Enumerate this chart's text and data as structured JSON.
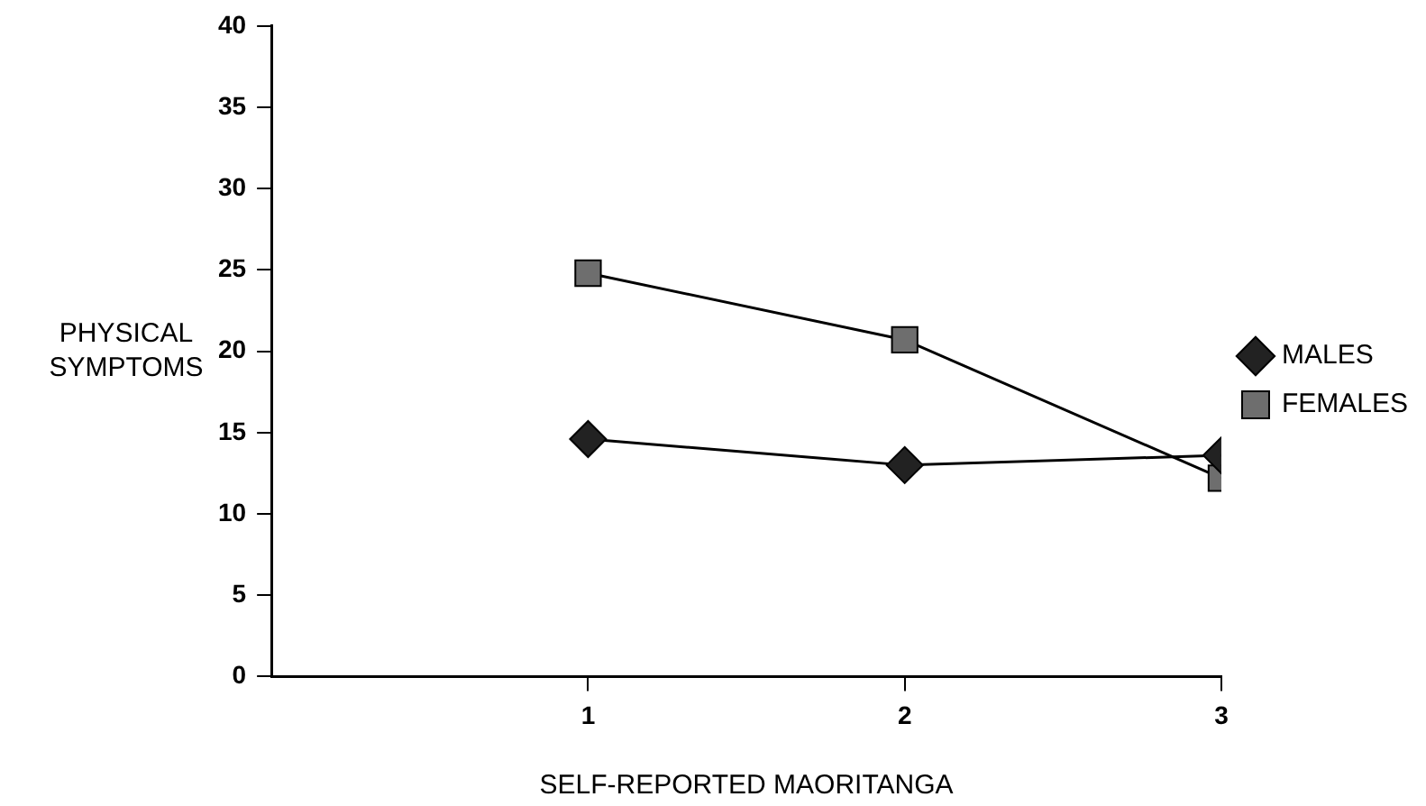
{
  "chart_data": {
    "type": "line",
    "xlabel": "SELF-REPORTED MAORITANGA",
    "ylabel": "PHYSICAL SYMPTOMS",
    "x": [
      1,
      2,
      3
    ],
    "xlim": [
      0,
      3
    ],
    "xticks": [
      1,
      2,
      3
    ],
    "ylim": [
      0,
      40
    ],
    "yticks": [
      0,
      5,
      10,
      15,
      20,
      25,
      30,
      35,
      40
    ],
    "grid": false,
    "legend": "right",
    "line_style": "solid",
    "series": [
      {
        "name": "MALES",
        "color": "#222222",
        "marker": "diamond",
        "values": [
          14.6,
          13.0,
          13.6
        ]
      },
      {
        "name": "FEMALES",
        "color": "#6e6e6e",
        "marker": "square",
        "values": [
          24.8,
          20.7,
          12.2
        ]
      }
    ]
  }
}
